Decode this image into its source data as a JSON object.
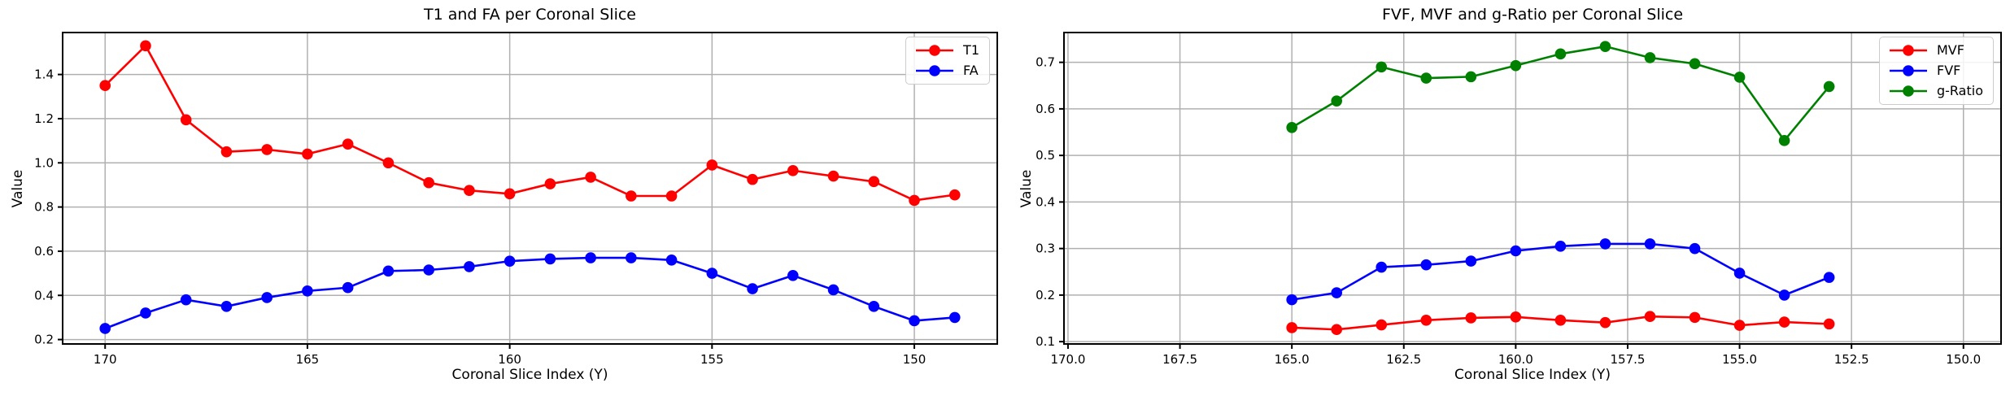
{
  "chart_data": [
    {
      "type": "line",
      "title": "T1 and FA per Coronal Slice",
      "xlabel": "Coronal Slice Index (Y)",
      "ylabel": "Value",
      "x": [
        170,
        169,
        168,
        167,
        166,
        165,
        164,
        163,
        162,
        161,
        160,
        159,
        158,
        157,
        156,
        155,
        154,
        153,
        152,
        151,
        150,
        149
      ],
      "series": [
        {
          "name": "T1",
          "color": "#ff0000",
          "values": [
            1.35,
            1.53,
            1.195,
            1.05,
            1.06,
            1.04,
            1.085,
            1.0,
            0.91,
            0.875,
            0.86,
            0.905,
            0.935,
            0.85,
            0.85,
            0.99,
            0.925,
            0.965,
            0.94,
            0.915,
            0.83,
            0.855
          ]
        },
        {
          "name": "FA",
          "color": "#0000ff",
          "values": [
            0.25,
            0.32,
            0.38,
            0.35,
            0.39,
            0.42,
            0.435,
            0.51,
            0.515,
            0.53,
            0.555,
            0.565,
            0.57,
            0.57,
            0.56,
            0.5,
            0.43,
            0.49,
            0.425,
            0.35,
            0.285,
            0.3
          ]
        }
      ],
      "x_axis_inverted": true,
      "xlim": [
        171.05,
        147.95
      ],
      "ylim": [
        0.18,
        1.59
      ],
      "x_ticks": [
        170,
        165,
        160,
        155,
        150
      ],
      "x_tick_labels": [
        "170",
        "165",
        "160",
        "155",
        "150"
      ],
      "y_ticks": [
        0.2,
        0.4,
        0.6,
        0.8,
        1.0,
        1.2,
        1.4
      ],
      "y_tick_labels": [
        "0.2",
        "0.4",
        "0.6",
        "0.8",
        "1.0",
        "1.2",
        "1.4"
      ],
      "grid": true,
      "legend_position": "upper right",
      "legend": [
        "T1",
        "FA"
      ]
    },
    {
      "type": "line",
      "title": "FVF, MVF and g-Ratio per Coronal Slice",
      "xlabel": "Coronal Slice Index (Y)",
      "ylabel": "Value",
      "x": [
        165,
        164,
        163,
        162,
        161,
        160,
        159,
        158,
        157,
        156,
        155,
        154,
        153
      ],
      "series": [
        {
          "name": "MVF",
          "color": "#ff0000",
          "values": [
            0.13,
            0.126,
            0.136,
            0.146,
            0.151,
            0.153,
            0.146,
            0.141,
            0.154,
            0.152,
            0.135,
            0.142,
            0.138
          ]
        },
        {
          "name": "FVF",
          "color": "#0000ff",
          "values": [
            0.19,
            0.205,
            0.26,
            0.265,
            0.273,
            0.295,
            0.305,
            0.31,
            0.31,
            0.3,
            0.247,
            0.2,
            0.238
          ]
        },
        {
          "name": "g-Ratio",
          "color": "#008000",
          "values": [
            0.56,
            0.617,
            0.69,
            0.666,
            0.669,
            0.693,
            0.718,
            0.734,
            0.71,
            0.697,
            0.668,
            0.532,
            0.648
          ]
        }
      ],
      "x_axis_inverted": true,
      "xlim": [
        170.09,
        149.16
      ],
      "ylim": [
        0.095,
        0.764
      ],
      "x_ticks": [
        170.0,
        167.5,
        165.0,
        162.5,
        160.0,
        157.5,
        155.0,
        152.5,
        150.0
      ],
      "x_tick_labels": [
        "170.0",
        "167.5",
        "165.0",
        "162.5",
        "160.0",
        "157.5",
        "155.0",
        "152.5",
        "150.0"
      ],
      "y_ticks": [
        0.1,
        0.2,
        0.3,
        0.4,
        0.5,
        0.6,
        0.7
      ],
      "y_tick_labels": [
        "0.1",
        "0.2",
        "0.3",
        "0.4",
        "0.5",
        "0.6",
        "0.7"
      ],
      "grid": true,
      "legend_position": "upper right",
      "legend": [
        "MVF",
        "FVF",
        "g-Ratio"
      ]
    }
  ],
  "style": {
    "grid_color": "#b0b0b0",
    "spine_color": "#000000",
    "background_color": "#ffffff"
  }
}
